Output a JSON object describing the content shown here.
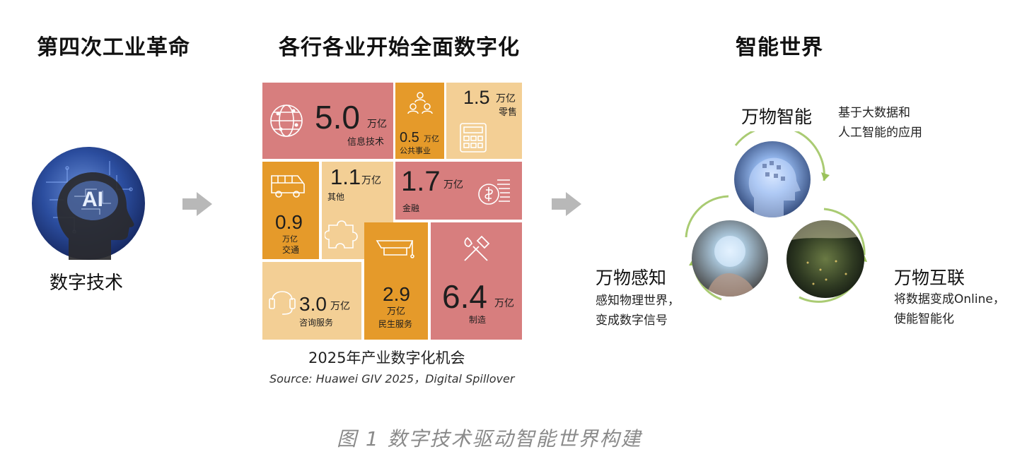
{
  "section1": {
    "title": "第四次工业革命",
    "label": "数字技术",
    "badge": "AI"
  },
  "section2": {
    "title": "各行各业开始全面数字化",
    "caption": "2025年产业数字化机会",
    "source": "Source: Huawei GIV 2025，Digital Spillover"
  },
  "unit": "万亿",
  "tiles": {
    "it": {
      "value": "5.0",
      "label": "信息技术",
      "icon": "globe-network-icon"
    },
    "public": {
      "value": "0.5",
      "label": "公共事业",
      "icon": "people-group-icon"
    },
    "retail": {
      "value": "1.5",
      "label": "零售",
      "icon": "calculator-icon"
    },
    "transport": {
      "value": "0.9",
      "label": "交通",
      "icon": "bus-icon"
    },
    "other": {
      "value": "1.1",
      "label": "其他",
      "icon": "puzzle-icon"
    },
    "finance": {
      "value": "1.7",
      "label": "金融",
      "icon": "coins-icon"
    },
    "consulting": {
      "value": "3.0",
      "label": "咨询服务",
      "icon": "headset-icon"
    },
    "livelihood": {
      "value": "2.9",
      "label": "民生服务",
      "icon": "graduation-cap-icon"
    },
    "manufacturing": {
      "value": "6.4",
      "label": "制造",
      "icon": "tools-icon"
    }
  },
  "section3": {
    "title": "智能世界",
    "intelligence": {
      "title": "万物智能",
      "desc1": "基于大数据和",
      "desc2": "人工智能的应用"
    },
    "perception": {
      "title": "万物感知",
      "desc1": "感知物理世界，",
      "desc2": "变成数字信号"
    },
    "interconnect": {
      "title": "万物互联",
      "desc1": "将数据变成Online，",
      "desc2": "使能智能化"
    }
  },
  "figure_caption": "图 1 数字技术驱动智能世界构建",
  "colors": {
    "red_tile": "#d77e7e",
    "orange_tile": "#e59a2a",
    "tan_tile": "#f3cf95",
    "arrow": "#b8b8b8",
    "ring_green": "#9bc25a"
  }
}
